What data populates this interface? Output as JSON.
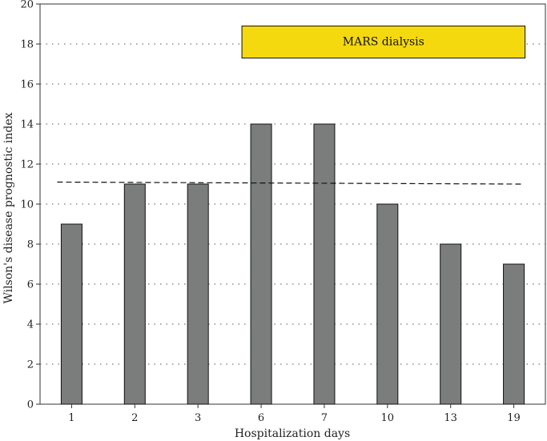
{
  "chart_data": {
    "type": "bar",
    "categories": [
      "1",
      "2",
      "3",
      "6",
      "7",
      "10",
      "13",
      "19"
    ],
    "values": [
      9,
      11,
      11,
      14,
      14,
      10,
      8,
      7
    ],
    "xlabel": "Hospitalization days",
    "ylabel": "Wilson's disease prognostic index",
    "ylim": [
      0,
      20
    ],
    "yticks": [
      0,
      2,
      4,
      6,
      8,
      10,
      12,
      14,
      16,
      18,
      20
    ],
    "grid": "horizontal dotted",
    "threshold_line": {
      "style": "dashed",
      "y_start": 11.1,
      "y_end": 11.0
    },
    "annotation": {
      "text": "MARS dialysis",
      "from_category": "6",
      "to_category": "19",
      "y_bottom": 17.3,
      "y_top": 18.9,
      "color": "#f5d90f"
    },
    "colors": {
      "bar": "#7a7d7c",
      "bar_border": "#111111",
      "axis": "#333333"
    }
  }
}
